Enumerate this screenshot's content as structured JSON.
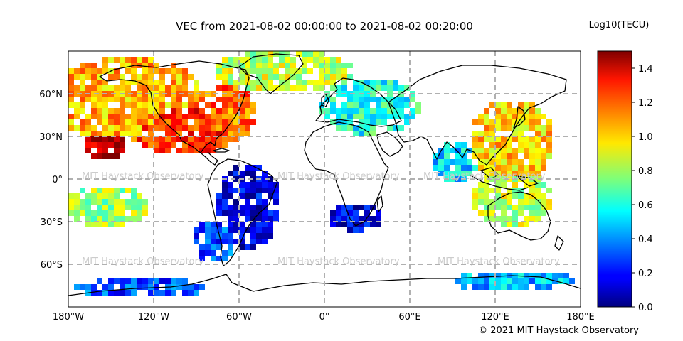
{
  "title": "VEC from 2021-08-02 00:00:00 to 2021-08-02 00:20:00",
  "colorbar": {
    "label": "Log10(TECU)",
    "range": [
      0.0,
      1.5
    ],
    "ticks": [
      "0.0",
      "0.2",
      "0.4",
      "0.6",
      "0.8",
      "1.0",
      "1.2",
      "1.4"
    ],
    "colormap": "jet"
  },
  "copyright": "© 2021 MIT Haystack Observatory",
  "watermark": "MIT Haystack Observatory",
  "map": {
    "lon_range": [
      -180,
      180
    ],
    "lat_range": [
      -90,
      90
    ],
    "lon_ticks": [
      "180°W",
      "120°W",
      "60°W",
      "0°",
      "60°E",
      "120°E",
      "180°E"
    ],
    "lat_ticks": [
      "60°N",
      "30°N",
      "0°",
      "30°S",
      "60°S"
    ],
    "grid": "dashed",
    "colors": {
      "grid": "#b0b0b0",
      "coastline": "#000000"
    }
  }
}
